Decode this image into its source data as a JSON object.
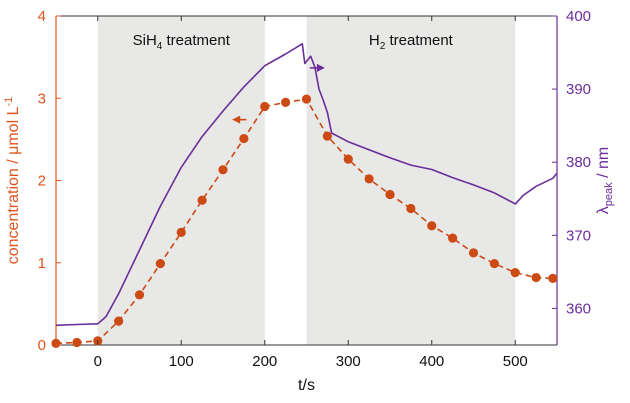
{
  "chart_data": {
    "type": "line",
    "xlabel": "t/s",
    "ylabel_left": {
      "main": "concentration  / μmol L",
      "sup": "-1"
    },
    "ylabel_right": {
      "main": "λ",
      "sub": "peak",
      "tail": " / nm"
    },
    "xlim": [
      -50,
      550
    ],
    "ylim_left": [
      0,
      4
    ],
    "ylim_right": [
      355,
      400
    ],
    "x_ticks": [
      0,
      100,
      200,
      300,
      400,
      500
    ],
    "y_ticks_left": [
      0,
      1,
      2,
      3,
      4
    ],
    "y_ticks_right": [
      360,
      370,
      380,
      390,
      400
    ],
    "colors": {
      "left_axis": "#e0541f",
      "right_axis": "#6a2d9a",
      "shading": "#e8e8e6",
      "axis": "#333333"
    },
    "regions": [
      {
        "x": [
          0,
          200
        ],
        "label": {
          "main": "SiH",
          "sub": "4",
          "tail": " treatment"
        }
      },
      {
        "x": [
          250,
          500
        ],
        "label": {
          "main": "H",
          "sub": "2",
          "tail": " treatment"
        }
      }
    ],
    "series": [
      {
        "axis": "left",
        "style": "dashed-with-markers",
        "color": "#cc4a14",
        "x": [
          -50,
          -25,
          0,
          25,
          50,
          75,
          100,
          125,
          150,
          175,
          200,
          225,
          250,
          275,
          300,
          325,
          350,
          375,
          400,
          425,
          450,
          475,
          500,
          525,
          545
        ],
        "values": [
          0.02,
          0.03,
          0.05,
          0.29,
          0.61,
          0.99,
          1.37,
          1.76,
          2.13,
          2.51,
          2.9,
          2.95,
          2.99,
          2.54,
          2.26,
          2.02,
          1.83,
          1.66,
          1.45,
          1.3,
          1.12,
          0.99,
          0.88,
          0.82,
          0.81
        ]
      },
      {
        "axis": "right",
        "style": "line",
        "color": "#6a2d9a",
        "x": [
          -50,
          -25,
          0,
          10,
          25,
          50,
          75,
          100,
          125,
          150,
          175,
          200,
          225,
          245,
          248,
          255,
          260,
          265,
          270,
          275,
          280,
          300,
          325,
          350,
          375,
          400,
          425,
          450,
          475,
          500,
          510,
          525,
          545,
          550
        ],
        "values": [
          357.7,
          357.8,
          357.9,
          358.9,
          362.0,
          368.0,
          374.0,
          379.3,
          383.5,
          387.0,
          390.3,
          393.2,
          394.8,
          396.2,
          393.5,
          394.5,
          393.0,
          390.0,
          388.5,
          386.8,
          384.0,
          382.8,
          381.7,
          380.6,
          379.6,
          379.0,
          377.9,
          376.9,
          375.8,
          374.3,
          375.5,
          376.7,
          377.8,
          378.5
        ]
      }
    ]
  }
}
